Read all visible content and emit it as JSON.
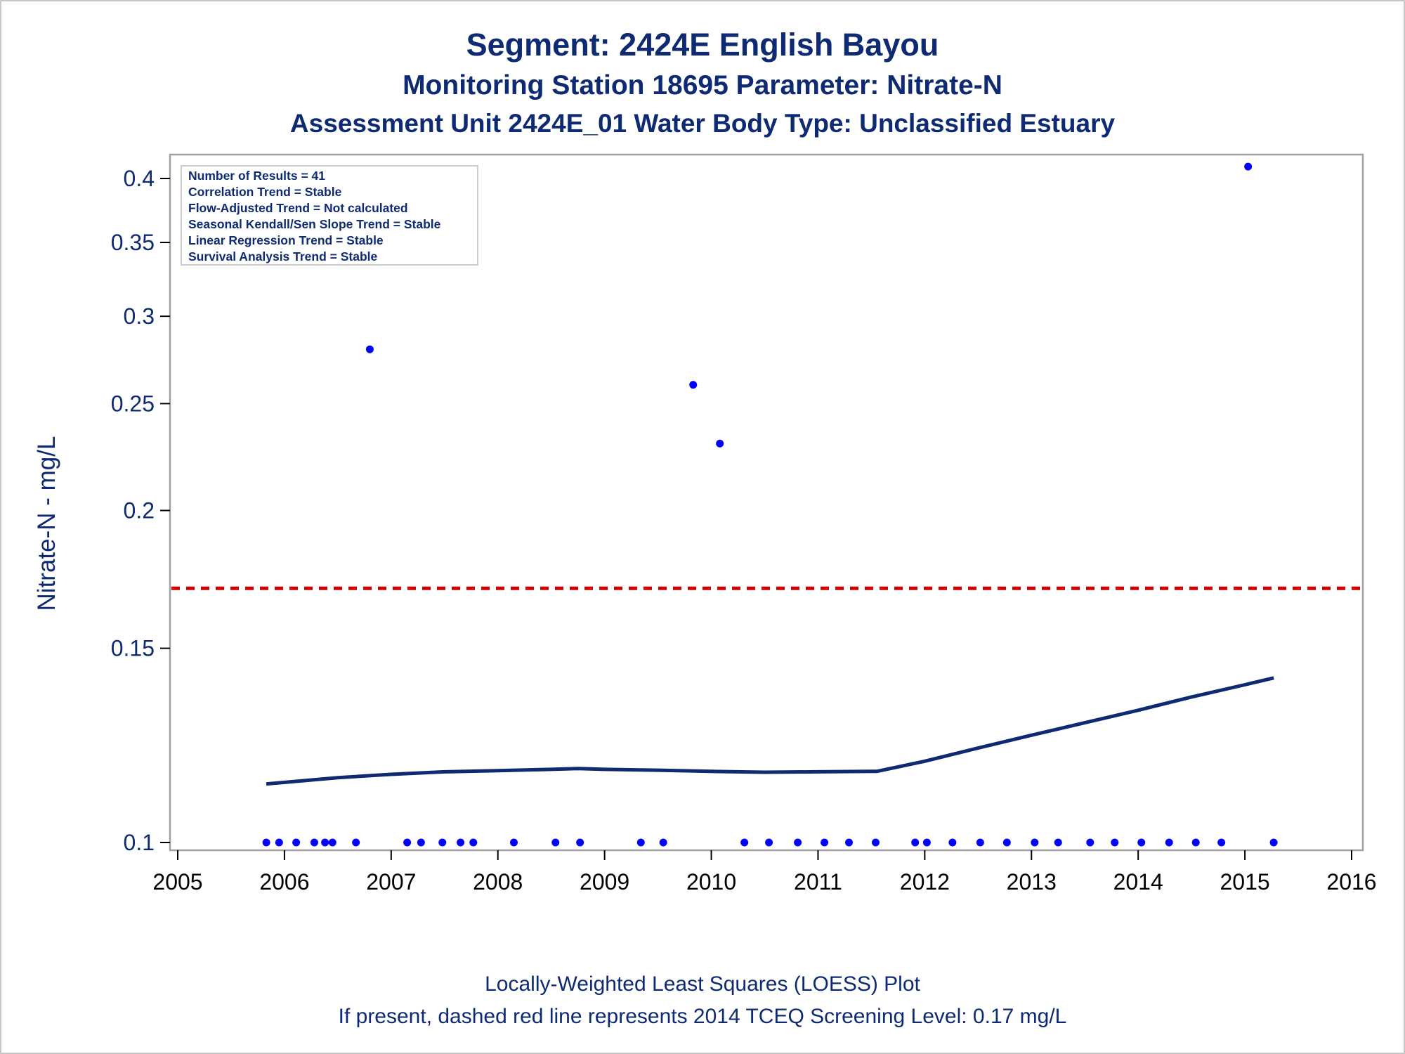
{
  "title": "Segment: 2424E  English Bayou",
  "subtitle1": "Monitoring Station 18695 Parameter: Nitrate-N",
  "subtitle2": "Assessment Unit 2424E_01   Water Body Type: Unclassified Estuary",
  "footnotes": [
    "Locally-Weighted Least Squares (LOESS) Plot",
    "If present, dashed red line represents 2014 TCEQ Screening Level: 0.17 mg/L"
  ],
  "stats": [
    "Number of Results = 41",
    "Correlation Trend = Stable",
    "Flow-Adjusted Trend = Not calculated",
    "Seasonal Kendall/Sen Slope Trend = Stable",
    "Linear Regression Trend = Stable",
    "Survival Analysis Trend = Stable"
  ],
  "colors": {
    "text": "#0d2a73",
    "points": "#0000ff",
    "loess": "#0d2a73",
    "screening": "#d00000",
    "axis": "#a0a0a0"
  },
  "chart_data": {
    "type": "scatter",
    "ylabel": "Nitrate-N - mg/L",
    "xlabel": "",
    "yscale": "log",
    "xlim": [
      2005,
      2016
    ],
    "ylim": [
      0.1,
      0.41
    ],
    "xticks": [
      2005,
      2006,
      2007,
      2008,
      2009,
      2010,
      2011,
      2012,
      2013,
      2014,
      2015,
      2016
    ],
    "yticks": [
      0.1,
      0.15,
      0.2,
      0.25,
      0.3,
      0.35,
      0.4
    ],
    "series": [
      {
        "kind": "points",
        "x": [
          2005.83,
          2005.95,
          2006.11,
          2006.28,
          2006.38,
          2006.45,
          2006.67,
          2006.8,
          2007.15,
          2007.28,
          2007.48,
          2007.65,
          2007.77,
          2008.15,
          2008.54,
          2008.77,
          2009.34,
          2009.55,
          2009.83,
          2010.08,
          2010.31,
          2010.54,
          2010.81,
          2011.06,
          2011.29,
          2011.54,
          2011.91,
          2012.02,
          2012.26,
          2012.52,
          2012.77,
          2013.03,
          2013.25,
          2013.55,
          2013.78,
          2014.03,
          2014.29,
          2014.54,
          2014.78,
          2015.03,
          2015.27
        ],
        "y": [
          0.1,
          0.1,
          0.1,
          0.1,
          0.1,
          0.1,
          0.1,
          0.28,
          0.1,
          0.1,
          0.1,
          0.1,
          0.1,
          0.1,
          0.1,
          0.1,
          0.1,
          0.1,
          0.26,
          0.23,
          0.1,
          0.1,
          0.1,
          0.1,
          0.1,
          0.1,
          0.1,
          0.1,
          0.1,
          0.1,
          0.1,
          0.1,
          0.1,
          0.1,
          0.1,
          0.1,
          0.1,
          0.1,
          0.1,
          0.41,
          0.1
        ]
      },
      {
        "kind": "loess",
        "x": [
          2005.83,
          2006.5,
          2007.0,
          2007.5,
          2008.0,
          2008.5,
          2008.75,
          2009.0,
          2009.5,
          2010.0,
          2010.5,
          2011.0,
          2011.5,
          2011.55,
          2012.0,
          2012.5,
          2013.0,
          2013.5,
          2014.0,
          2014.5,
          2015.0,
          2015.27
        ],
        "y": [
          0.113,
          0.1145,
          0.1153,
          0.1159,
          0.1162,
          0.1165,
          0.1167,
          0.1165,
          0.1163,
          0.116,
          0.1158,
          0.1159,
          0.116,
          0.116,
          0.1185,
          0.1218,
          0.1251,
          0.1284,
          0.1318,
          0.1355,
          0.139,
          0.141
        ]
      }
    ],
    "reference_line": {
      "y": 0.17,
      "style": "dashed",
      "color": "#d00000"
    }
  }
}
